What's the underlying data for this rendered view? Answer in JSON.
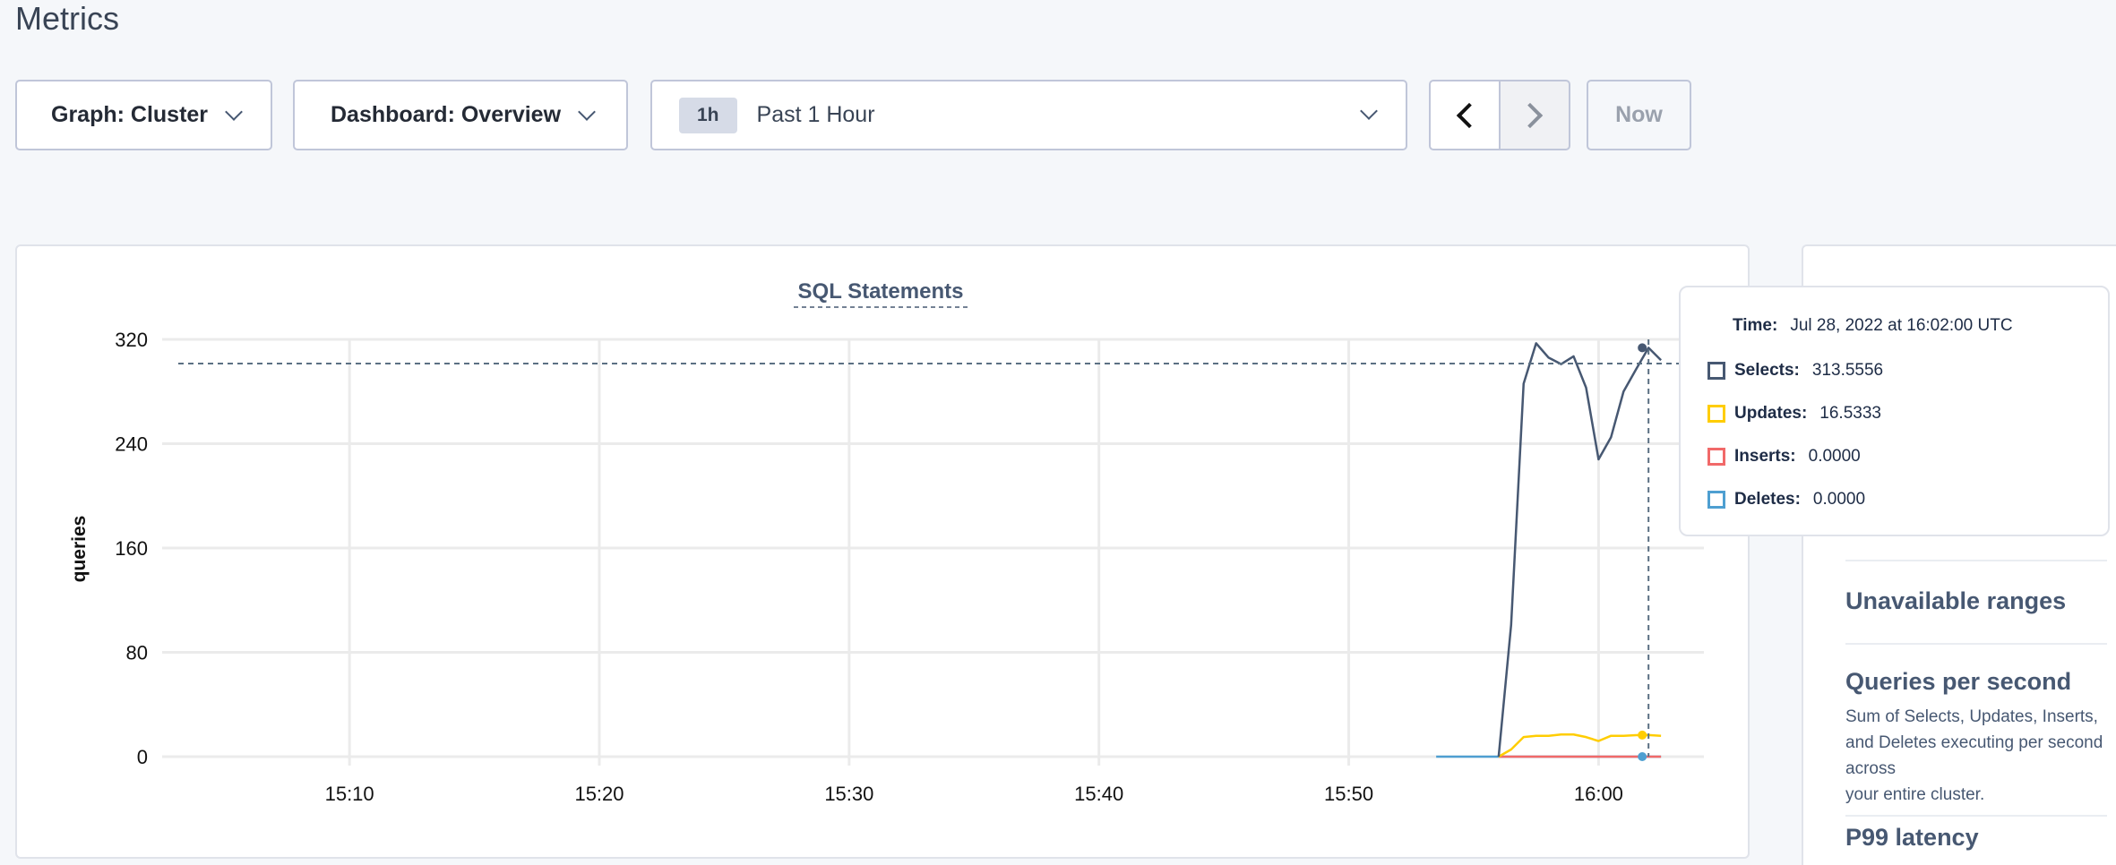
{
  "page": {
    "title": "Metrics"
  },
  "controls": {
    "graph_label": "Graph: Cluster",
    "dashboard_label": "Dashboard: Overview",
    "time_badge": "1h",
    "time_label": "Past 1 Hour",
    "prev_icon": "chevron-left-icon",
    "next_icon": "chevron-right-icon",
    "now_label": "Now"
  },
  "colors": {
    "selects": "#475872",
    "updates": "#ffcd02",
    "inserts": "#f16969",
    "deletes": "#4e9fd1"
  },
  "chart_data": {
    "type": "line",
    "title": "SQL Statements",
    "ylabel": "queries",
    "xlabel": "",
    "ylim": [
      0,
      320
    ],
    "yticks": [
      "0",
      "80",
      "160",
      "240",
      "320"
    ],
    "xlim": [
      "15:02:30",
      "16:03:30"
    ],
    "xticks": [
      "15:10",
      "15:20",
      "15:30",
      "15:40",
      "15:50",
      "16:00"
    ],
    "grid": true,
    "x": [
      "15:56:00",
      "15:56:30",
      "15:57:00",
      "15:57:30",
      "15:58:00",
      "15:58:30",
      "15:59:00",
      "15:59:30",
      "16:00:00",
      "16:00:30",
      "16:01:00",
      "16:01:30",
      "16:02:00",
      "16:02:30"
    ],
    "series": [
      {
        "name": "Selects",
        "color": "#475872",
        "values": [
          0,
          101,
          286,
          317,
          306,
          301,
          307,
          283,
          228,
          245,
          280,
          297,
          313.5556,
          304
        ]
      },
      {
        "name": "Updates",
        "color": "#ffcd02",
        "values": [
          0,
          5.5,
          15,
          16,
          16,
          17,
          17,
          15,
          12,
          16,
          16,
          16.5,
          16.5333,
          16
        ]
      },
      {
        "name": "Inserts",
        "color": "#f16969",
        "values": [
          0,
          0,
          0,
          0,
          0,
          0,
          0,
          0,
          0,
          0,
          0,
          0,
          0,
          0
        ]
      },
      {
        "name": "Deletes",
        "color": "#4e9fd1",
        "x": [
          "15:53:30",
          "16:02:30"
        ],
        "values": [
          0,
          0
        ]
      }
    ],
    "hover_time": "16:02:00"
  },
  "tooltip": {
    "time_label": "Time:",
    "time_value": "Jul 28, 2022 at 16:02:00 UTC",
    "rows": [
      {
        "label": "Selects:",
        "value": "313.5556"
      },
      {
        "label": "Updates:",
        "value": "16.5333"
      },
      {
        "label": "Inserts:",
        "value": "0.0000"
      },
      {
        "label": "Deletes:",
        "value": "0.0000"
      }
    ]
  },
  "right_panel": {
    "items": [
      {
        "title": "Unavailable ranges"
      },
      {
        "title": "Queries per second",
        "desc_line1": "Sum of Selects, Updates, Inserts, and Deletes executing per second across",
        "desc_line2": "your entire cluster."
      },
      {
        "title": "P99 latency"
      }
    ]
  }
}
